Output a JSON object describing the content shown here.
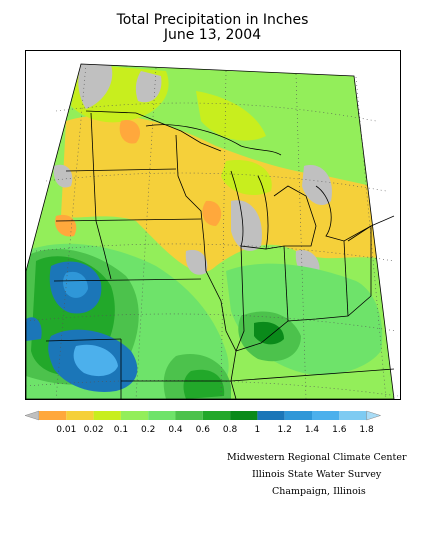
{
  "title": {
    "line1": "Total Precipitation in Inches",
    "line2": "June 13, 2004"
  },
  "legend": {
    "items": [
      {
        "label": "0.01",
        "color": "#ffa83c"
      },
      {
        "label": "0.02",
        "color": "#f5d03a"
      },
      {
        "label": "0.1",
        "color": "#c8ee1e"
      },
      {
        "label": "0.2",
        "color": "#93ee5a"
      },
      {
        "label": "0.4",
        "color": "#6ee36a"
      },
      {
        "label": "0.6",
        "color": "#4cc24c"
      },
      {
        "label": "0.8",
        "color": "#22a82a"
      },
      {
        "label": "1",
        "color": "#0a8a1a"
      },
      {
        "label": "1.2",
        "color": "#1b76b8"
      },
      {
        "label": "1.4",
        "color": "#2f97d8"
      },
      {
        "label": "1.6",
        "color": "#4cb0ec"
      },
      {
        "label": "1.8",
        "color": "#7ecbf2"
      }
    ],
    "below_color": "#c0c0c0",
    "above_color": "#a9dcf6"
  },
  "credits": {
    "line1": "Midwestern Regional Climate Center",
    "line2": "Illinois State Water Survey",
    "line3": "Champaign, Illinois"
  },
  "map": {
    "no_data_color": "#c0c0c0",
    "outside_color": "#ffffff"
  }
}
